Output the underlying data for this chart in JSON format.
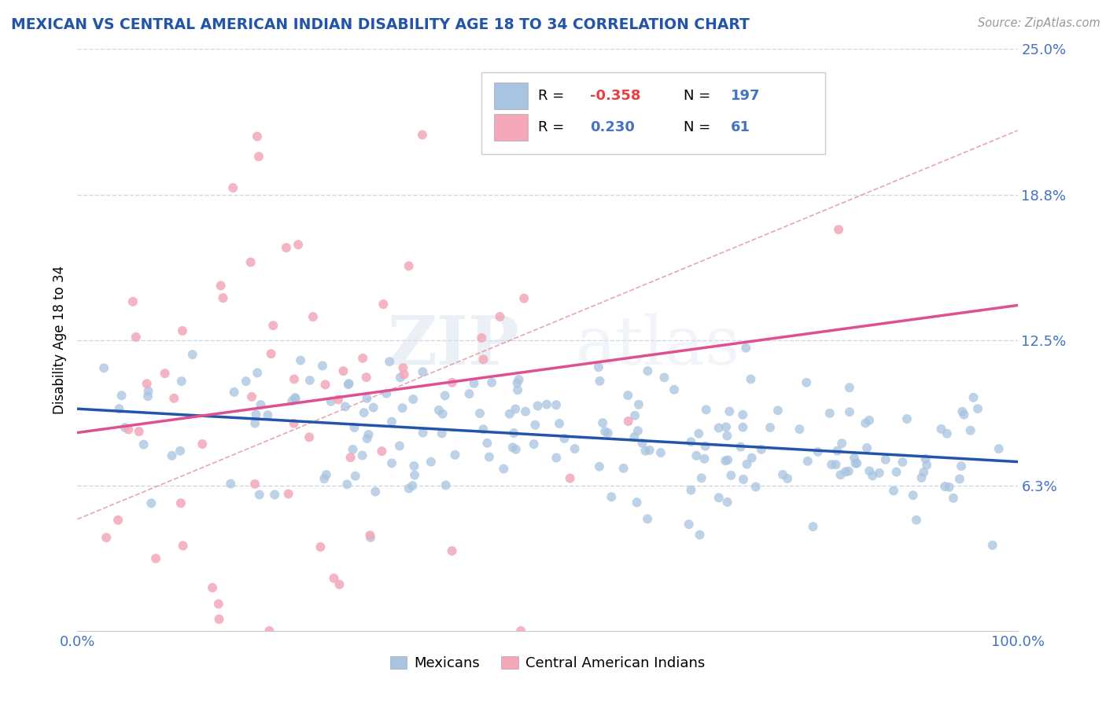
{
  "title": "MEXICAN VS CENTRAL AMERICAN INDIAN DISABILITY AGE 18 TO 34 CORRELATION CHART",
  "source_text": "Source: ZipAtlas.com",
  "ylabel": "Disability Age 18 to 34",
  "xlim": [
    0,
    1.0
  ],
  "ylim": [
    0,
    0.25
  ],
  "yticks": [
    0.0,
    0.0625,
    0.125,
    0.1875,
    0.25
  ],
  "ytick_labels": [
    "",
    "6.3%",
    "12.5%",
    "18.8%",
    "25.0%"
  ],
  "xticks": [
    0.0,
    0.1,
    0.2,
    0.3,
    0.4,
    0.5,
    0.6,
    0.7,
    0.8,
    0.9,
    1.0
  ],
  "xtick_labels": [
    "0.0%",
    "",
    "",
    "",
    "",
    "",
    "",
    "",
    "",
    "",
    "100.0%"
  ],
  "blue_color": "#a8c4e0",
  "pink_color": "#f4a7b9",
  "blue_line_color": "#2255aa",
  "pink_line_color": "#e05090",
  "dashed_line_color": "#e08090",
  "grid_color": "#d0d8e8",
  "legend_R1": "-0.358",
  "legend_N1": "197",
  "legend_R2": "0.230",
  "legend_N2": "61",
  "legend_label1": "Mexicans",
  "legend_label2": "Central American Indians",
  "watermark_zip": "ZIP",
  "watermark_atlas": "atlas",
  "blue_R": -0.358,
  "blue_N": 197,
  "pink_R": 0.23,
  "pink_N": 61,
  "seed": 7
}
